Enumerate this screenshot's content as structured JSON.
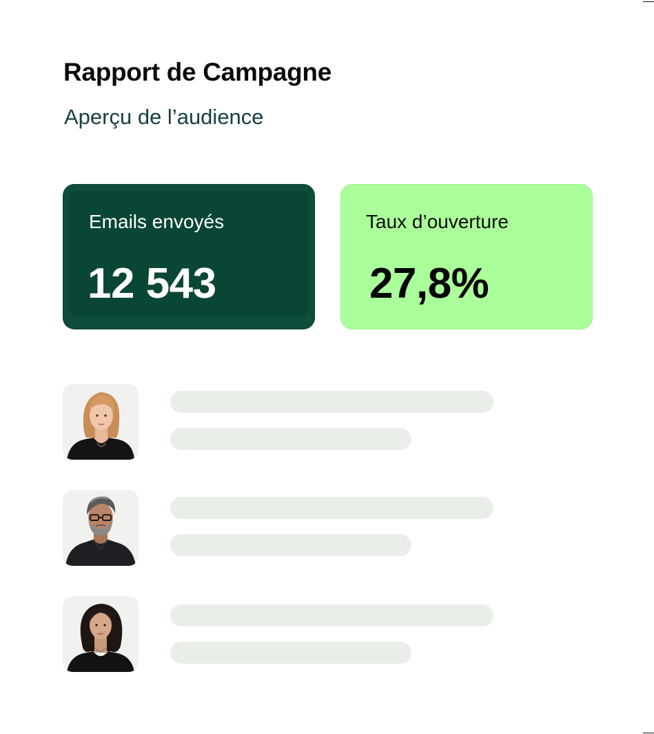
{
  "report": {
    "title": "Rapport de Campagne",
    "subtitle": "Aperçu de l’audience"
  },
  "stats": [
    {
      "label": "Emails envoyés",
      "value": "12 543",
      "card_color": "#0e4d3b",
      "text_color": "#ffffff"
    },
    {
      "label": "Taux d’ouverture",
      "value": "27,8%",
      "card_color": "#abff9a",
      "text_color": "#050505"
    }
  ],
  "audience": [
    {
      "avatar": "woman-short-blonde-hair-avatar"
    },
    {
      "avatar": "man-grey-hair-glasses-beard-avatar"
    },
    {
      "avatar": "woman-dark-wavy-hair-avatar"
    }
  ],
  "colors": {
    "title": "#0b0b0b",
    "subtitle": "#163f43",
    "skeleton": "#eaeee8",
    "avatar_background": "#f1f2f0"
  }
}
